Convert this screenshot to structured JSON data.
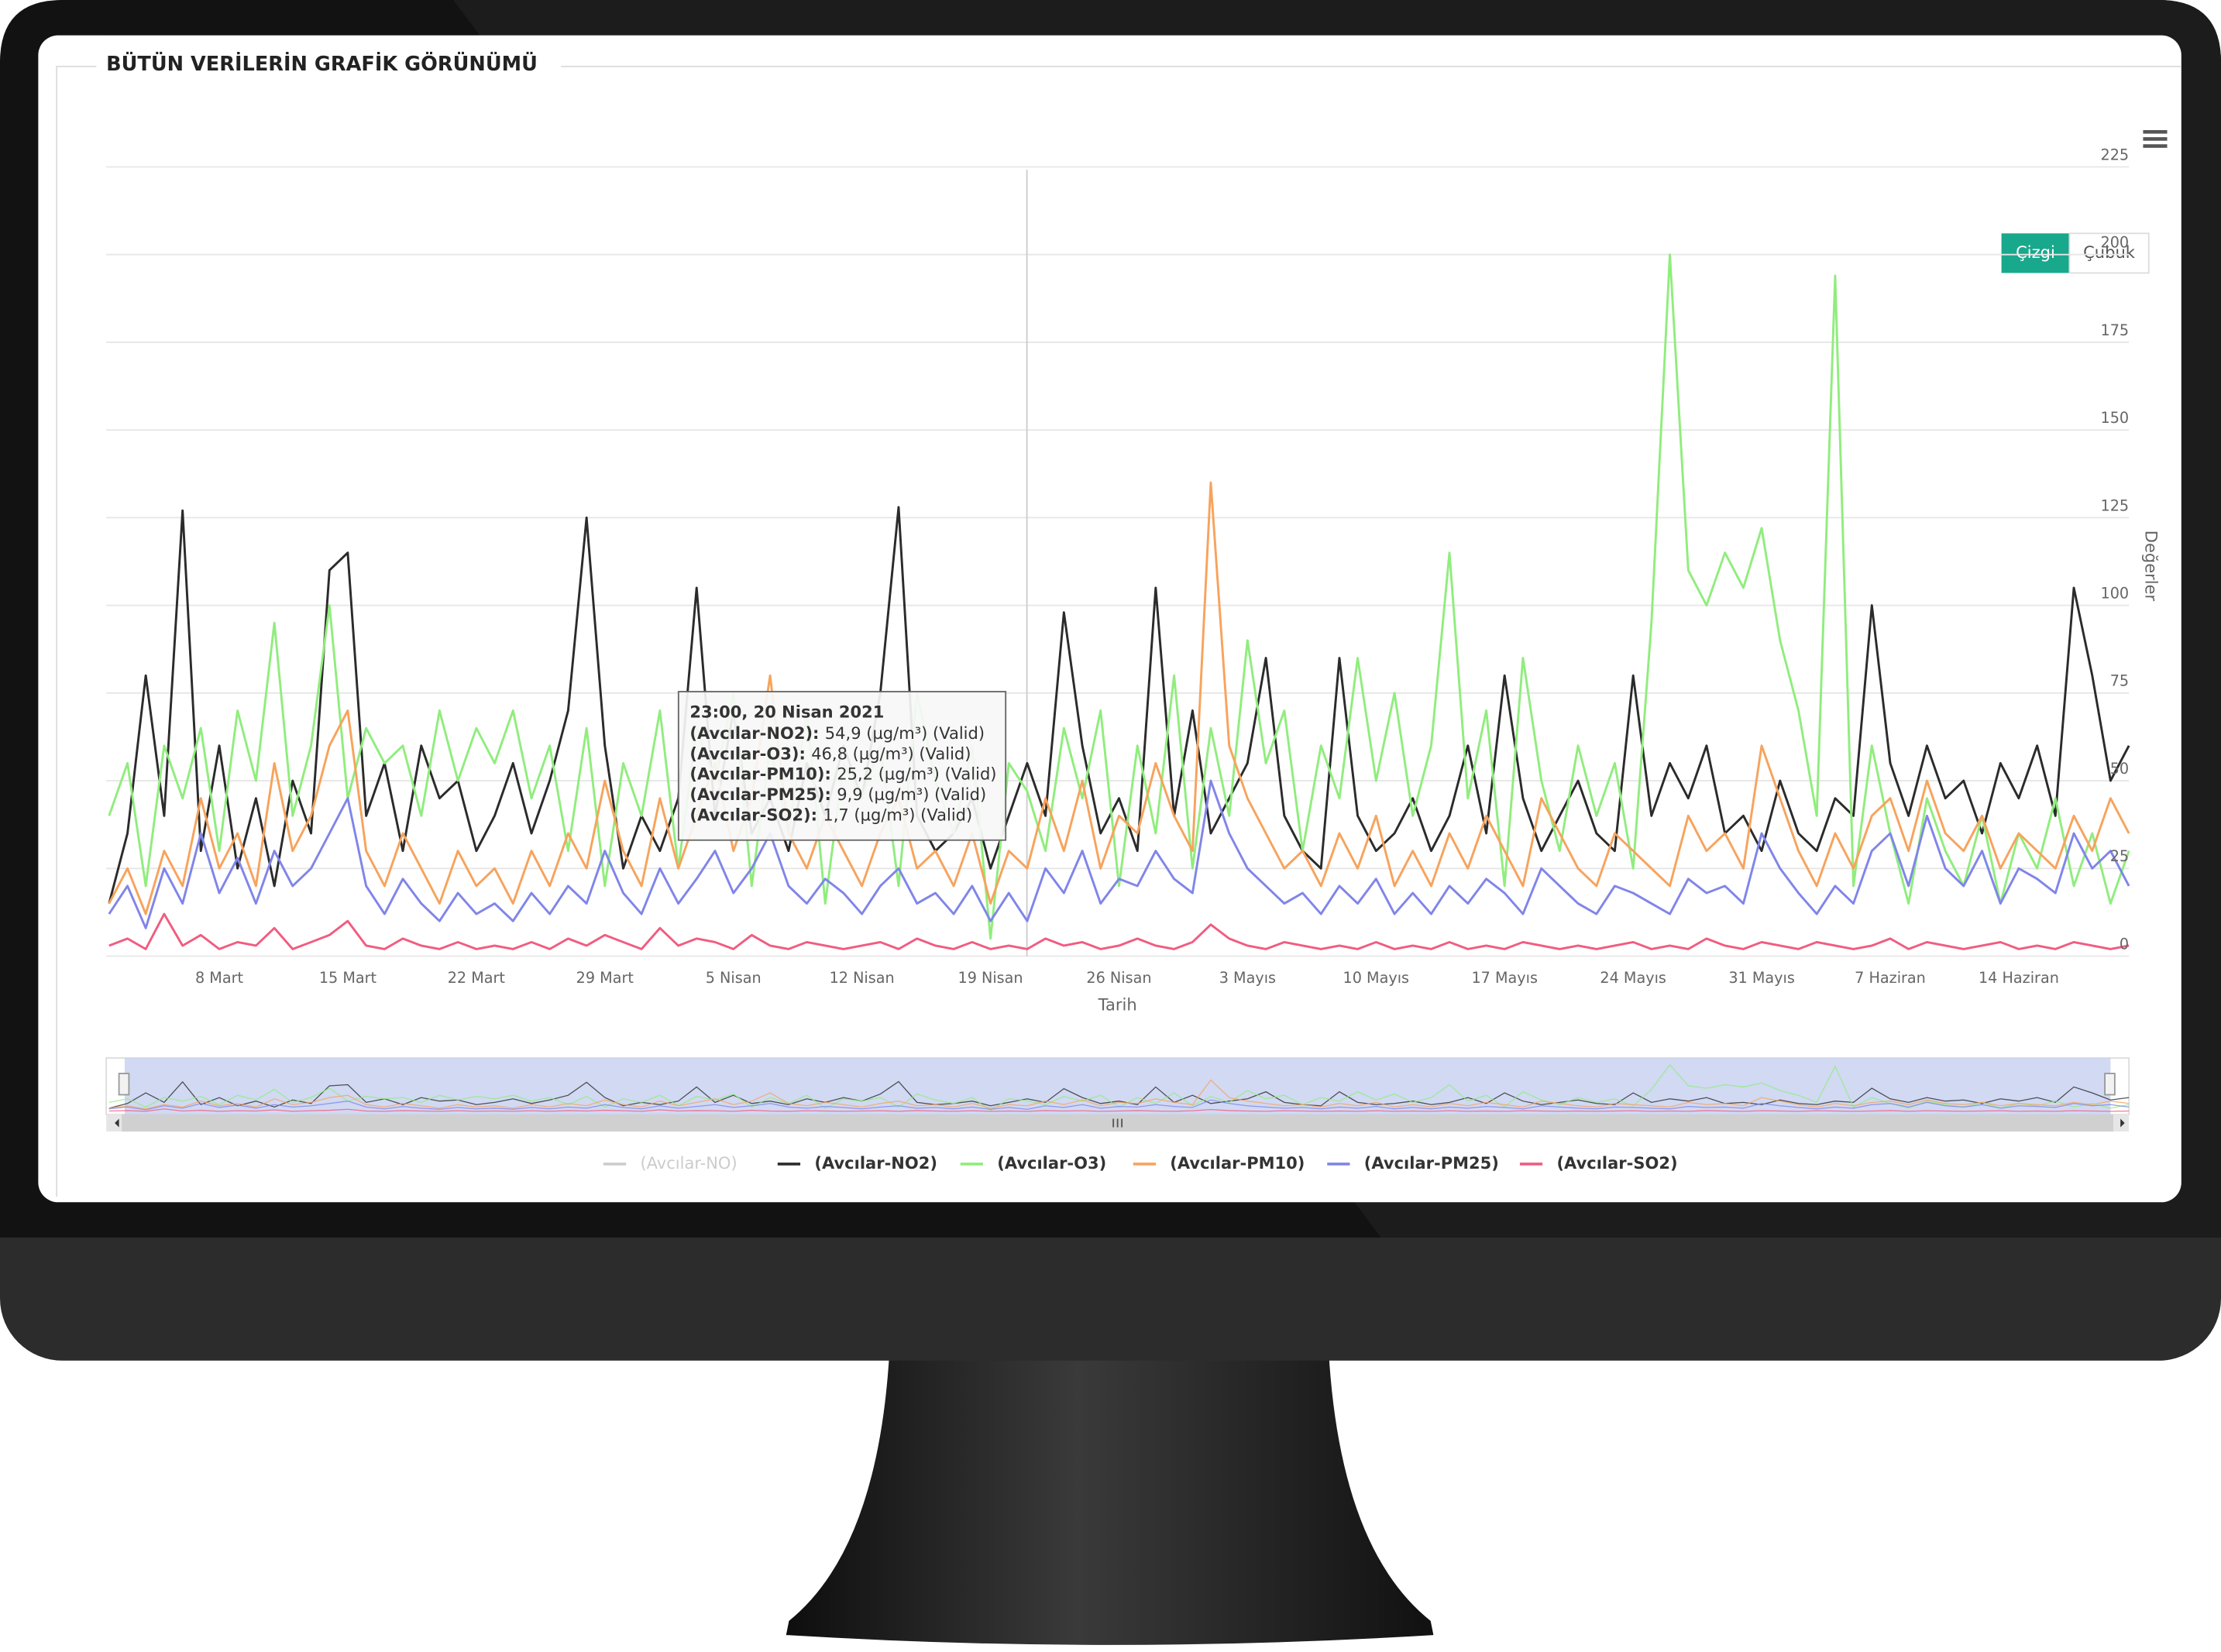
{
  "chart_data": {
    "type": "line",
    "title": "BÜTÜN VERİLERİN GRAFİK GÖRÜNÜMÜ",
    "buttons": [
      "Çizgi",
      "Çubuk"
    ],
    "xlabel": "Tarih",
    "ylabel": "Değerler",
    "categories": [
      null,
      null,
      null,
      null,
      null,
      null,
      "8 Mart",
      null,
      null,
      null,
      null,
      null,
      null,
      "15 Mart",
      null,
      null,
      null,
      null,
      null,
      null,
      "22 Mart",
      null,
      null,
      null,
      null,
      null,
      null,
      "29 Mart",
      null,
      null,
      null,
      null,
      null,
      null,
      "5 Nisan",
      null,
      null,
      null,
      null,
      null,
      null,
      "12 Nisan",
      null,
      null,
      null,
      null,
      null,
      null,
      "19 Nisan",
      null,
      null,
      null,
      null,
      null,
      null,
      "26 Nisan",
      null,
      null,
      null,
      null,
      null,
      null,
      "3 Mayıs",
      null,
      null,
      null,
      null,
      null,
      null,
      "10 Mayıs",
      null,
      null,
      null,
      null,
      null,
      null,
      "17 Mayıs",
      null,
      null,
      null,
      null,
      null,
      null,
      "24 Mayıs",
      null,
      null,
      null,
      null,
      null,
      null,
      "31 Mayıs",
      null,
      null,
      null,
      null,
      null,
      null,
      "7 Haziran",
      null,
      null,
      null,
      null,
      null,
      null,
      "14 Haziran",
      null,
      null,
      null,
      null,
      null,
      null
    ],
    "ylim": [
      0,
      225
    ],
    "yticks": [
      0,
      25,
      50,
      75,
      100,
      125,
      150,
      175,
      200,
      225
    ],
    "grid": true,
    "hidden_series": [
      {
        "name": "(Avcılar-NO)",
        "color": "#cccccc"
      }
    ],
    "series": [
      {
        "name": "(Avcılar-NO2)",
        "color": "#2b2b2b",
        "values": [
          15,
          35,
          80,
          40,
          127,
          30,
          60,
          25,
          45,
          20,
          50,
          35,
          110,
          115,
          40,
          55,
          30,
          60,
          45,
          50,
          30,
          40,
          55,
          35,
          50,
          70,
          125,
          60,
          25,
          40,
          30,
          45,
          105,
          40,
          70,
          35,
          45,
          30,
          55,
          40,
          60,
          45,
          75,
          128,
          40,
          30,
          35,
          45,
          25,
          40,
          55,
          40,
          98,
          60,
          35,
          45,
          30,
          105,
          40,
          70,
          35,
          45,
          55,
          85,
          40,
          30,
          25,
          85,
          40,
          30,
          35,
          45,
          30,
          40,
          60,
          35,
          80,
          45,
          30,
          40,
          50,
          35,
          30,
          80,
          40,
          55,
          45,
          60,
          35,
          40,
          30,
          50,
          35,
          30,
          45,
          40,
          100,
          55,
          40,
          60,
          45,
          50,
          35,
          55,
          45,
          60,
          40,
          105,
          80,
          50,
          60
        ]
      },
      {
        "name": "(Avcılar-O3)",
        "color": "#90ed7d",
        "values": [
          40,
          55,
          20,
          60,
          45,
          65,
          30,
          70,
          50,
          95,
          40,
          60,
          100,
          45,
          65,
          55,
          60,
          40,
          70,
          50,
          65,
          55,
          70,
          45,
          60,
          30,
          65,
          20,
          55,
          40,
          70,
          25,
          65,
          50,
          75,
          20,
          60,
          35,
          70,
          15,
          55,
          45,
          60,
          20,
          75,
          50,
          35,
          60,
          5,
          55,
          47,
          30,
          65,
          45,
          70,
          20,
          60,
          35,
          80,
          25,
          65,
          40,
          90,
          55,
          70,
          30,
          60,
          45,
          85,
          50,
          75,
          40,
          60,
          115,
          45,
          70,
          20,
          85,
          50,
          30,
          60,
          40,
          55,
          25,
          95,
          200,
          110,
          100,
          115,
          105,
          122,
          90,
          70,
          40,
          194,
          20,
          60,
          35,
          15,
          45,
          30,
          20,
          40,
          15,
          35,
          25,
          45,
          20,
          35,
          15,
          30
        ]
      },
      {
        "name": "(Avcılar-PM10)",
        "color": "#f7a35c",
        "values": [
          15,
          25,
          12,
          30,
          20,
          45,
          25,
          35,
          20,
          55,
          30,
          40,
          60,
          70,
          30,
          20,
          35,
          25,
          15,
          30,
          20,
          25,
          15,
          30,
          20,
          35,
          25,
          50,
          30,
          20,
          45,
          25,
          40,
          55,
          30,
          45,
          80,
          35,
          25,
          40,
          30,
          20,
          35,
          45,
          25,
          30,
          20,
          35,
          15,
          30,
          25,
          45,
          30,
          50,
          25,
          40,
          35,
          55,
          40,
          30,
          135,
          60,
          45,
          35,
          25,
          30,
          20,
          35,
          25,
          40,
          20,
          30,
          20,
          35,
          25,
          40,
          30,
          20,
          45,
          35,
          25,
          20,
          35,
          30,
          25,
          20,
          40,
          30,
          35,
          25,
          60,
          45,
          30,
          20,
          35,
          25,
          40,
          45,
          30,
          50,
          35,
          30,
          40,
          25,
          35,
          30,
          25,
          40,
          30,
          45,
          35
        ]
      },
      {
        "name": "(Avcılar-PM25)",
        "color": "#8085e9",
        "values": [
          12,
          20,
          8,
          25,
          15,
          35,
          18,
          28,
          15,
          30,
          20,
          25,
          35,
          45,
          20,
          12,
          22,
          15,
          10,
          18,
          12,
          15,
          10,
          18,
          12,
          20,
          15,
          30,
          18,
          12,
          25,
          15,
          22,
          30,
          18,
          25,
          35,
          20,
          15,
          22,
          18,
          12,
          20,
          25,
          15,
          18,
          12,
          20,
          10,
          18,
          10,
          25,
          18,
          30,
          15,
          22,
          20,
          30,
          22,
          18,
          50,
          35,
          25,
          20,
          15,
          18,
          12,
          20,
          15,
          22,
          12,
          18,
          12,
          20,
          15,
          22,
          18,
          12,
          25,
          20,
          15,
          12,
          20,
          18,
          15,
          12,
          22,
          18,
          20,
          15,
          35,
          25,
          18,
          12,
          20,
          15,
          30,
          35,
          20,
          40,
          25,
          20,
          30,
          15,
          25,
          22,
          18,
          35,
          25,
          30,
          20
        ]
      },
      {
        "name": "(Avcılar-SO2)",
        "color": "#f15c80",
        "values": [
          3,
          5,
          2,
          12,
          3,
          6,
          2,
          4,
          3,
          8,
          2,
          4,
          6,
          10,
          3,
          2,
          5,
          3,
          2,
          4,
          2,
          3,
          2,
          4,
          2,
          5,
          3,
          6,
          4,
          2,
          8,
          3,
          5,
          4,
          2,
          6,
          3,
          2,
          4,
          3,
          2,
          3,
          4,
          2,
          5,
          3,
          2,
          4,
          2,
          3,
          2,
          5,
          3,
          4,
          2,
          3,
          5,
          3,
          2,
          4,
          9,
          5,
          3,
          2,
          4,
          3,
          2,
          3,
          2,
          4,
          2,
          3,
          2,
          4,
          2,
          3,
          2,
          4,
          3,
          2,
          3,
          2,
          3,
          4,
          2,
          3,
          2,
          5,
          3,
          2,
          4,
          3,
          2,
          4,
          3,
          2,
          3,
          5,
          2,
          4,
          3,
          2,
          3,
          4,
          2,
          3,
          2,
          4,
          3,
          2,
          3
        ]
      }
    ],
    "tooltip": {
      "title": "23:00, 20 Nisan 2021",
      "rows": [
        {
          "name": "(Avcılar-NO2):",
          "text": "54,9 (µg/m³) (Valid)"
        },
        {
          "name": "(Avcılar-O3):",
          "text": "46,8 (µg/m³) (Valid)"
        },
        {
          "name": "(Avcılar-PM10):",
          "text": "25,2 (µg/m³) (Valid)"
        },
        {
          "name": "(Avcılar-PM25):",
          "text": "9,9 (µg/m³) (Valid)"
        },
        {
          "name": "(Avcılar-SO2):",
          "text": "1,7 (µg/m³) (Valid)"
        }
      ]
    }
  }
}
